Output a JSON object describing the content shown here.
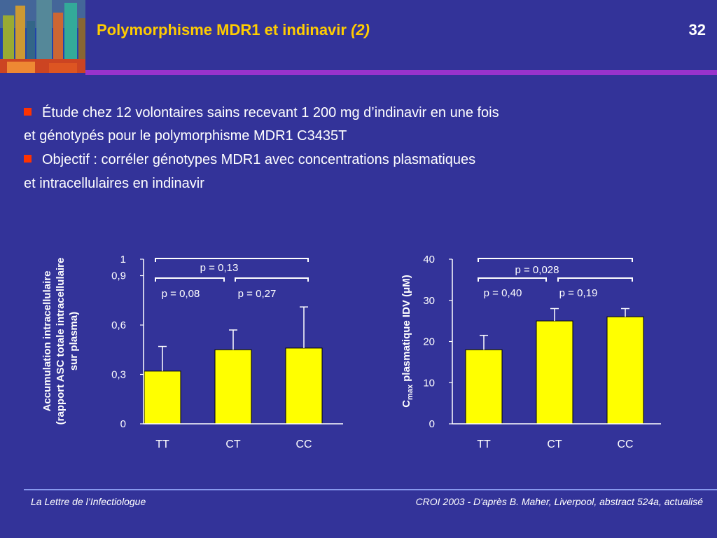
{
  "slide": {
    "title_main": "Polymorphisme MDR1 et indinavir",
    "title_sub": "(2)",
    "page_number": "32"
  },
  "bullets": [
    {
      "line1": "Étude chez 12 volontaires sains recevant 1 200 mg d’indinavir en une fois",
      "line2": "et génotypés pour le polymorphisme MDR1 C3435T"
    },
    {
      "line1": "Objectif : corréler génotypes MDR1 avec concentrations plasmatiques",
      "line2": "et intracellulaires en indinavir"
    }
  ],
  "footer": {
    "left": "La Lettre de l’Infectiologue",
    "right": "CROI 2003 - D'après B. Maher, Liverpool, abstract 524a, actualisé"
  },
  "colors": {
    "background": "#333399",
    "title": "#ffcc00",
    "bar": "#ffff00",
    "bullet": "#ff3300",
    "rule": "#9933cc"
  },
  "chart_data": [
    {
      "type": "bar",
      "ylabel_lines": [
        "Accumulation intracellulaire",
        "(rapport ASC totale intracellulaire",
        "sur plasma)"
      ],
      "categories": [
        "TT",
        "CT",
        "CC"
      ],
      "values": [
        0.32,
        0.45,
        0.46
      ],
      "error_upper": [
        0.47,
        0.57,
        0.71
      ],
      "ylim": [
        0,
        1
      ],
      "yticks": [
        0,
        0.3,
        0.6,
        0.9,
        1
      ],
      "ytick_labels": [
        "0",
        "0,3",
        "0,6",
        "0,9",
        "1"
      ],
      "comparisons": [
        {
          "label": "p = 0,13",
          "from": 0,
          "to": 2
        },
        {
          "label": "p = 0,08",
          "from": 0,
          "to": 1
        },
        {
          "label": "p = 0,27",
          "from": 1,
          "to": 2
        }
      ]
    },
    {
      "type": "bar",
      "ylabel_main": "C",
      "ylabel_sub": "max",
      "ylabel_rest": " plasmatique IDV (",
      "ylabel_unit_symbol": "μ",
      "ylabel_end": "M)",
      "categories": [
        "TT",
        "CT",
        "CC"
      ],
      "values": [
        18,
        25,
        26
      ],
      "error_upper": [
        21.5,
        28,
        28
      ],
      "ylim": [
        0,
        40
      ],
      "yticks": [
        0,
        10,
        20,
        30,
        40
      ],
      "ytick_labels": [
        "0",
        "10",
        "20",
        "30",
        "40"
      ],
      "comparisons": [
        {
          "label": "p = 0,028",
          "from": 0,
          "to": 2
        },
        {
          "label": "p = 0,40",
          "from": 0,
          "to": 1
        },
        {
          "label": "p = 0,19",
          "from": 1,
          "to": 2
        }
      ]
    }
  ]
}
